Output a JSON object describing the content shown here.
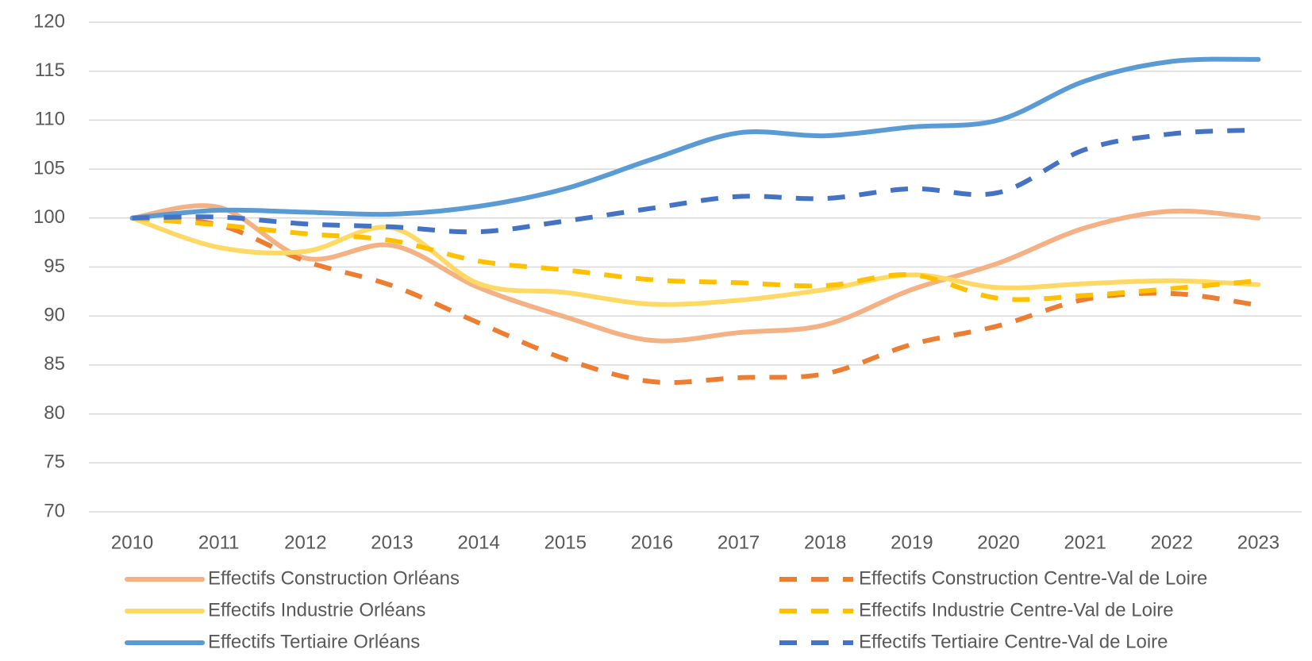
{
  "chart_data": {
    "type": "line",
    "categories": [
      "2010",
      "2011",
      "2012",
      "2013",
      "2014",
      "2015",
      "2016",
      "2017",
      "2018",
      "2019",
      "2020",
      "2021",
      "2022",
      "2023"
    ],
    "series": [
      {
        "name": "Effectifs Construction Orléans",
        "color": "#f4b183",
        "style": "solid",
        "values": [
          100,
          101.1,
          95.9,
          97.2,
          92.9,
          89.9,
          87.5,
          88.3,
          89.1,
          92.7,
          95.4,
          99,
          100.7,
          100
        ]
      },
      {
        "name": "Effectifs Construction Centre-Val de Loire",
        "color": "#ed7d31",
        "style": "dashed",
        "values": [
          100,
          99.3,
          95.6,
          93.1,
          89.3,
          85.6,
          83.3,
          83.7,
          84.1,
          87.1,
          89,
          91.7,
          92.3,
          91.1
        ]
      },
      {
        "name": "Effectifs Industrie Orléans",
        "color": "#ffd966",
        "style": "solid",
        "values": [
          100,
          97,
          96.6,
          99,
          93.3,
          92.4,
          91.2,
          91.6,
          92.7,
          94.2,
          92.9,
          93.3,
          93.6,
          93.2
        ]
      },
      {
        "name": "Effectifs Industrie Centre-Val de Loire",
        "color": "#ffc000",
        "style": "dashed",
        "values": [
          100,
          99.3,
          98.4,
          97.7,
          95.6,
          94.7,
          93.7,
          93.4,
          93.1,
          94.2,
          91.8,
          92.1,
          92.8,
          93.6
        ]
      },
      {
        "name": "Effectifs Tertiaire Orléans",
        "color": "#5b9bd5",
        "style": "solid",
        "values": [
          100,
          100.8,
          100.6,
          100.4,
          101.2,
          103,
          106,
          108.7,
          108.4,
          109.3,
          110,
          114,
          116,
          116.2
        ]
      },
      {
        "name": "Effectifs Tertiaire Centre-Val de Loire",
        "color": "#4472c4",
        "style": "dashed",
        "values": [
          100,
          100.1,
          99.4,
          99.1,
          98.6,
          99.7,
          101,
          102.2,
          102,
          103,
          102.6,
          107,
          108.6,
          109
        ]
      }
    ],
    "ylim": [
      70,
      120
    ],
    "yticks": [
      70,
      75,
      80,
      85,
      90,
      95,
      100,
      105,
      110,
      115,
      120
    ],
    "grid": true
  }
}
